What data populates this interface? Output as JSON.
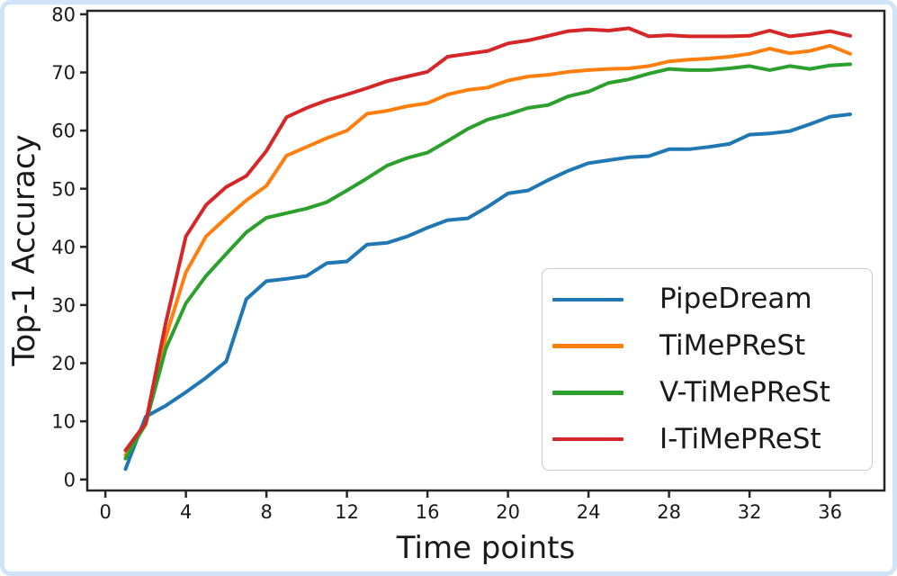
{
  "frame": {
    "border_color": "#cfe5f7",
    "background": "#ffffff",
    "axis_color": "#262626",
    "legend_border_color": "#c9c9c9"
  },
  "chart_data": {
    "type": "line",
    "title": "",
    "xlabel": "Time points",
    "ylabel": "Top-1 Accuracy",
    "grid": false,
    "legend_position": "lower right",
    "xlim": [
      -0.9,
      38.7
    ],
    "ylim": [
      -1.9,
      80.6
    ],
    "xticks": [
      0,
      4,
      8,
      12,
      16,
      20,
      24,
      28,
      32,
      36
    ],
    "yticks": [
      0,
      10,
      20,
      30,
      40,
      50,
      60,
      70,
      80
    ],
    "x": [
      1,
      2,
      3,
      4,
      5,
      6,
      7,
      8,
      9,
      10,
      11,
      12,
      13,
      14,
      15,
      16,
      17,
      18,
      19,
      20,
      21,
      22,
      23,
      24,
      25,
      26,
      27,
      28,
      29,
      30,
      31,
      32,
      33,
      34,
      35,
      36,
      37
    ],
    "series": [
      {
        "name": "PipeDream",
        "color": "#1f77b4",
        "values": [
          1.8,
          10.8,
          12.7,
          15.0,
          17.5,
          20.3,
          31.0,
          34.1,
          34.5,
          35.0,
          37.2,
          37.5,
          40.4,
          40.7,
          41.8,
          43.3,
          44.6,
          44.9,
          46.9,
          49.2,
          49.7,
          51.5,
          53.1,
          54.4,
          54.9,
          55.4,
          55.6,
          56.8,
          56.8,
          57.2,
          57.7,
          59.3,
          59.5,
          59.9,
          61.1,
          62.4,
          62.8
        ]
      },
      {
        "name": "TiMePReSt",
        "color": "#ff7f0e",
        "values": [
          4.2,
          9.4,
          24.5,
          35.6,
          41.8,
          45.0,
          48.0,
          50.5,
          55.7,
          57.2,
          58.7,
          60.0,
          62.9,
          63.4,
          64.2,
          64.7,
          66.2,
          67.0,
          67.4,
          68.6,
          69.3,
          69.6,
          70.1,
          70.4,
          70.6,
          70.7,
          71.1,
          71.9,
          72.2,
          72.4,
          72.7,
          73.2,
          74.1,
          73.3,
          73.7,
          74.6,
          73.2
        ]
      },
      {
        "name": "V-TiMePReSt",
        "color": "#2ca02c",
        "values": [
          3.6,
          9.6,
          22.5,
          30.3,
          35.0,
          38.8,
          42.5,
          45.0,
          45.8,
          46.6,
          47.7,
          49.7,
          51.8,
          54.0,
          55.3,
          56.2,
          58.2,
          60.3,
          61.9,
          62.8,
          63.9,
          64.4,
          65.9,
          66.7,
          68.2,
          68.8,
          69.8,
          70.6,
          70.4,
          70.4,
          70.7,
          71.1,
          70.4,
          71.1,
          70.6,
          71.2,
          71.4
        ]
      },
      {
        "name": "I-TiMePReSt",
        "color": "#d62728",
        "values": [
          5.0,
          9.7,
          27.0,
          41.8,
          47.2,
          50.3,
          52.2,
          56.5,
          62.3,
          63.9,
          65.2,
          66.2,
          67.3,
          68.5,
          69.3,
          70.1,
          72.7,
          73.2,
          73.7,
          75.0,
          75.5,
          76.3,
          77.1,
          77.4,
          77.2,
          77.6,
          76.2,
          76.4,
          76.2,
          76.2,
          76.2,
          76.3,
          77.2,
          76.2,
          76.6,
          77.1,
          76.3
        ]
      }
    ]
  }
}
